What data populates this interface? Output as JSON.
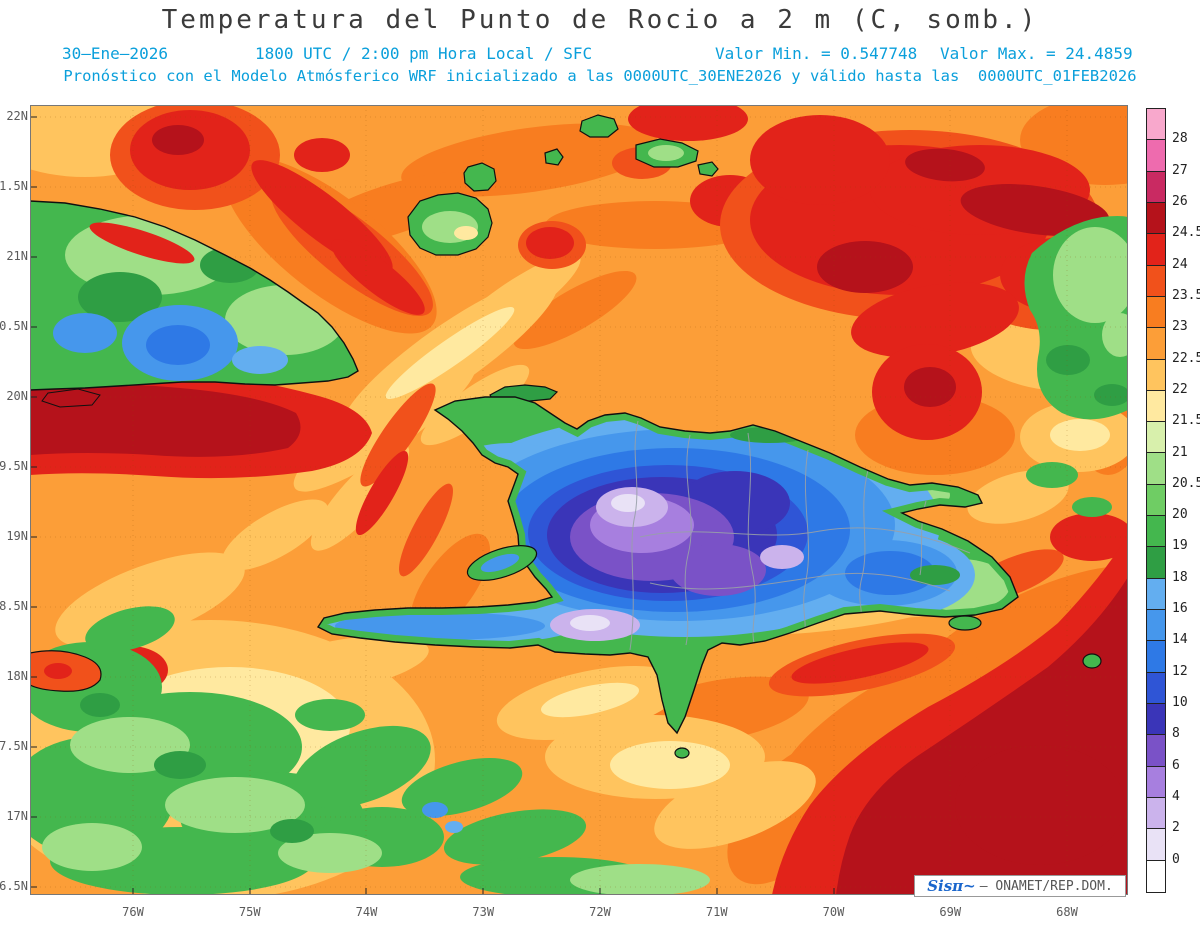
{
  "title": "Temperatura del Punto de Rocio a 2 m (C, somb.)",
  "header": {
    "date": "30—Ene—2026",
    "time": "1800 UTC / 2:00 pm Hora Local / SFC",
    "value_min": "Valor Min. = 0.547748",
    "value_max": "Valor Max. = 24.4859",
    "model_line": "Pronóstico con el Modelo Atmósferico WRF inicializado a las 0000UTC_30ENE2026 y válido hasta las  0000UTC_01FEB2026"
  },
  "axes": {
    "lat_labels": [
      "22N",
      "1.5N",
      "21N",
      "0.5N",
      "20N",
      "9.5N",
      "19N",
      "8.5N",
      "18N",
      "7.5N",
      "17N",
      "6.5N"
    ],
    "lon_labels": [
      "76W",
      "75W",
      "74W",
      "73W",
      "72W",
      "71W",
      "70W",
      "69W",
      "68W"
    ]
  },
  "legend": {
    "labels": [
      "28",
      "27",
      "26",
      "24.5",
      "24",
      "23.5",
      "23",
      "22.5",
      "22",
      "21.5",
      "21",
      "20.5",
      "20",
      "19",
      "18",
      "16",
      "14",
      "12",
      "10",
      "8",
      "6",
      "4",
      "2",
      "0"
    ],
    "colors": [
      "#F8A8CC",
      "#EE6BAE",
      "#C92A62",
      "#B5121B",
      "#E2231A",
      "#F1511B",
      "#F87D20",
      "#FC9E38",
      "#FFC45E",
      "#FFE9A0",
      "#D8F0AC",
      "#9FDF87",
      "#6FCD64",
      "#44B74E",
      "#2F9E44",
      "#63AEF0",
      "#4697EC",
      "#2E79E6",
      "#2F55D6",
      "#3A35B8",
      "#7A52C7",
      "#A77FDF",
      "#CBB3EC",
      "#E9E2F6",
      "#FFFFFF"
    ]
  },
  "watermark": {
    "brand": "Sisπ~",
    "text": "— ONAMET/REP.DOM."
  },
  "chart_data": {
    "type": "heatmap",
    "title": "Temperatura del Punto de Rocio a 2 m (C, somb.)",
    "valid_time": "30-Ene-2026 1800 UTC / 2:00 pm Hora Local / SFC",
    "model": "Pronóstico WRF inicializado 0000UTC_30ENE2026, válido hasta 0000UTC_01FEB2026",
    "units": "C",
    "value_min": 0.547748,
    "value_max": 24.4859,
    "x": {
      "axis": "longitude",
      "ticks": [
        "76W",
        "75W",
        "74W",
        "73W",
        "72W",
        "71W",
        "70W",
        "69W",
        "68W"
      ]
    },
    "y": {
      "axis": "latitude",
      "ticks_visible": [
        "22N",
        "1.5N",
        "21N",
        "0.5N",
        "20N",
        "9.5N",
        "19N",
        "8.5N",
        "18N",
        "7.5N",
        "17N",
        "6.5N"
      ]
    },
    "color_levels_c": [
      0,
      2,
      4,
      6,
      8,
      10,
      12,
      14,
      16,
      18,
      19,
      20,
      20.5,
      21,
      21.5,
      22,
      22.5,
      23,
      23.5,
      24,
      24.5,
      26,
      27,
      28
    ],
    "legend_position": "right",
    "grid": "dotted graticule every 0.5 deg lat / 1 deg lon",
    "approx_field": [
      {
        "area": "open ocean (dominant shading)",
        "value_c": "22-23"
      },
      {
        "area": "northeast quadrant ocean",
        "value_c": "23.5-26"
      },
      {
        "area": "ocean south of eastern Cuba",
        "value_c": "24-26"
      },
      {
        "area": "southeast corner of domain",
        "value_c": "24-26"
      },
      {
        "area": "eastern Cuba land",
        "value_c": "14-21"
      },
      {
        "area": "Hispaniola coasts and lowlands",
        "value_c": "18-21"
      },
      {
        "area": "Hispaniola interior highlands",
        "value_c": "2-14"
      },
      {
        "area": "coldest cordillera cores",
        "value_c": "0.5-4"
      },
      {
        "area": "southwest quadrant ocean patches",
        "value_c": "19-22"
      },
      {
        "area": "far-east green bank near 68W 20.5N",
        "value_c": "19-21"
      }
    ]
  }
}
